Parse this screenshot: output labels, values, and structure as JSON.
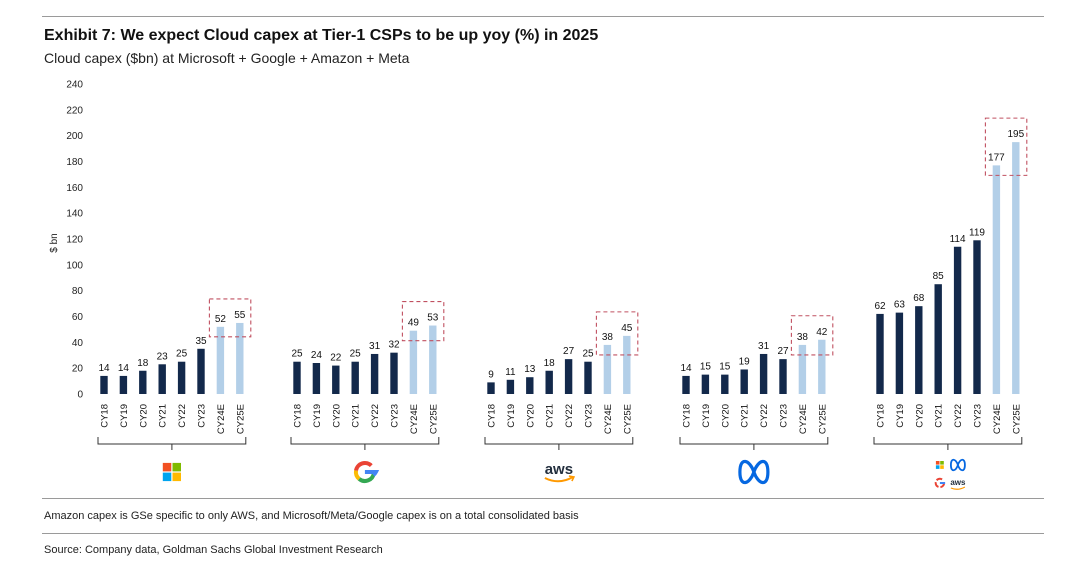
{
  "header": {
    "title": "Exhibit 7: We expect Cloud capex at Tier-1 CSPs to be up yoy (%) in 2025",
    "subtitle": "Cloud capex ($bn) at Microsoft + Google + Amazon + Meta"
  },
  "footer": {
    "note": "Amazon capex is GSe specific to only AWS, and Microsoft/Meta/Google capex is on a total consolidated basis",
    "source": "Source: Company data, Goldman Sachs Global Investment Research"
  },
  "chart_data": {
    "type": "bar",
    "ylabel": "$ bn",
    "ylim": [
      0,
      240
    ],
    "yticks": [
      0,
      20,
      40,
      60,
      80,
      100,
      120,
      140,
      160,
      180,
      200,
      220,
      240
    ],
    "grid": false,
    "colors": {
      "actual": "#13294b",
      "estimate": "#b3cfe8",
      "highlight_box": "#c05060"
    },
    "groups": [
      {
        "logo": "microsoft-logo",
        "categories": [
          "CY18",
          "CY19",
          "CY20",
          "CY21",
          "CY22",
          "CY23",
          "CY24E",
          "CY25E"
        ],
        "values": [
          14,
          14,
          18,
          23,
          25,
          35,
          52,
          55
        ],
        "estimate_from_index": 6
      },
      {
        "logo": "google-logo",
        "categories": [
          "CY18",
          "CY19",
          "CY20",
          "CY21",
          "CY22",
          "CY23",
          "CY24E",
          "CY25E"
        ],
        "values": [
          25,
          24,
          22,
          25,
          31,
          32,
          49,
          53
        ],
        "estimate_from_index": 6
      },
      {
        "logo": "aws-logo",
        "logo_text": "aws",
        "categories": [
          "CY18",
          "CY19",
          "CY20",
          "CY21",
          "CY22",
          "CY23",
          "CY24E",
          "CY25E"
        ],
        "values": [
          9,
          11,
          13,
          18,
          27,
          25,
          38,
          45
        ],
        "estimate_from_index": 6
      },
      {
        "logo": "meta-logo",
        "categories": [
          "CY18",
          "CY19",
          "CY20",
          "CY21",
          "CY22",
          "CY23",
          "CY24E",
          "CY25E"
        ],
        "values": [
          14,
          15,
          15,
          19,
          31,
          27,
          38,
          42
        ],
        "estimate_from_index": 6
      },
      {
        "logo": "combined-logos",
        "logo_text": "aws",
        "categories": [
          "CY18",
          "CY19",
          "CY20",
          "CY21",
          "CY22",
          "CY23",
          "CY24E",
          "CY25E"
        ],
        "values": [
          62,
          63,
          68,
          85,
          114,
          119,
          177,
          195
        ],
        "estimate_from_index": 6
      }
    ]
  }
}
